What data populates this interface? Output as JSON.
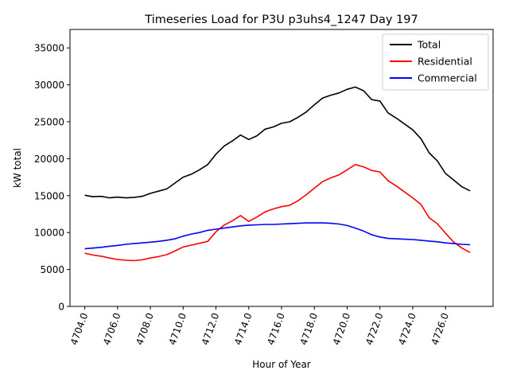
{
  "chart_data": {
    "type": "line",
    "title": "Timeseries Load for P3U p3uhs4_1247  Day 197",
    "xlabel": "Hour of Year",
    "ylabel": "kW total",
    "xlim": [
      4703.1,
      4728.9
    ],
    "ylim": [
      0,
      37500
    ],
    "xticks": [
      4704,
      4706,
      4708,
      4710,
      4712,
      4714,
      4716,
      4718,
      4720,
      4722,
      4724,
      4726
    ],
    "xtick_labels": [
      "4704.0",
      "4706.0",
      "4708.0",
      "4710.0",
      "4712.0",
      "4714.0",
      "4716.0",
      "4718.0",
      "4720.0",
      "4722.0",
      "4724.0",
      "4726.0"
    ],
    "yticks": [
      0,
      5000,
      10000,
      15000,
      20000,
      25000,
      30000,
      35000
    ],
    "ytick_labels": [
      "0",
      "5000",
      "10000",
      "15000",
      "20000",
      "25000",
      "30000",
      "35000"
    ],
    "legend_position": "top-right",
    "grid": false,
    "series": [
      {
        "name": "Total",
        "color": "#000000",
        "x": [
          4704,
          4704.5,
          4705,
          4705.5,
          4706,
          4706.5,
          4707,
          4707.5,
          4708,
          4708.5,
          4709,
          4709.5,
          4710,
          4710.5,
          4711,
          4711.5,
          4712,
          4712.5,
          4713,
          4713.5,
          4714,
          4714.5,
          4715,
          4715.5,
          4716,
          4716.5,
          4717,
          4717.5,
          4718,
          4718.5,
          4719,
          4719.5,
          4720,
          4720.5,
          4721,
          4721.5,
          4722,
          4722.5,
          4723,
          4723.5,
          4724,
          4724.5,
          4725,
          4725.5,
          4726,
          4726.5,
          4727,
          4727.5
        ],
        "values": [
          15050,
          14850,
          14900,
          14700,
          14800,
          14700,
          14750,
          14900,
          15300,
          15600,
          15900,
          16700,
          17500,
          17900,
          18500,
          19200,
          20600,
          21700,
          22400,
          23200,
          22600,
          23100,
          24000,
          24300,
          24800,
          25000,
          25600,
          26300,
          27300,
          28200,
          28600,
          28900,
          29400,
          29700,
          29200,
          28000,
          27800,
          26200,
          25500,
          24700,
          23900,
          22700,
          20800,
          19700,
          18000,
          17100,
          16200,
          15650
        ]
      },
      {
        "name": "Residential",
        "color": "#ff0000",
        "x": [
          4704,
          4704.5,
          4705,
          4705.5,
          4706,
          4706.5,
          4707,
          4707.5,
          4708,
          4708.5,
          4709,
          4709.5,
          4710,
          4710.5,
          4711,
          4711.5,
          4712,
          4712.5,
          4713,
          4713.5,
          4714,
          4714.5,
          4715,
          4715.5,
          4716,
          4716.5,
          4717,
          4717.5,
          4718,
          4718.5,
          4719,
          4719.5,
          4720,
          4720.5,
          4721,
          4721.5,
          4722,
          4722.5,
          4723,
          4723.5,
          4724,
          4724.5,
          4725,
          4725.5,
          4726,
          4726.5,
          4727,
          4727.5
        ],
        "values": [
          7200,
          6950,
          6800,
          6550,
          6350,
          6250,
          6200,
          6300,
          6550,
          6750,
          7000,
          7500,
          8050,
          8300,
          8550,
          8800,
          10100,
          11000,
          11600,
          12300,
          11500,
          12100,
          12800,
          13200,
          13500,
          13700,
          14300,
          15100,
          16000,
          16900,
          17400,
          17800,
          18500,
          19200,
          18900,
          18400,
          18200,
          17000,
          16300,
          15500,
          14700,
          13800,
          12000,
          11200,
          9900,
          8700,
          7900,
          7300
        ]
      },
      {
        "name": "Commercial",
        "color": "#0000ff",
        "x": [
          4704,
          4704.5,
          4705,
          4705.5,
          4706,
          4706.5,
          4707,
          4707.5,
          4708,
          4708.5,
          4709,
          4709.5,
          4710,
          4710.5,
          4711,
          4711.5,
          4712,
          4712.5,
          4713,
          4713.5,
          4714,
          4714.5,
          4715,
          4715.5,
          4716,
          4716.5,
          4717,
          4717.5,
          4718,
          4718.5,
          4719,
          4719.5,
          4720,
          4720.5,
          4721,
          4721.5,
          4722,
          4722.5,
          4723,
          4723.5,
          4724,
          4724.5,
          4725,
          4725.5,
          4726,
          4726.5,
          4727,
          4727.5
        ],
        "values": [
          7800,
          7900,
          8000,
          8150,
          8250,
          8400,
          8500,
          8600,
          8700,
          8800,
          8950,
          9150,
          9500,
          9800,
          10000,
          10300,
          10450,
          10600,
          10750,
          10900,
          11000,
          11050,
          11100,
          11100,
          11150,
          11200,
          11250,
          11300,
          11300,
          11300,
          11250,
          11150,
          10950,
          10600,
          10200,
          9700,
          9400,
          9200,
          9150,
          9100,
          9050,
          8950,
          8850,
          8750,
          8600,
          8500,
          8400,
          8350
        ]
      }
    ]
  }
}
